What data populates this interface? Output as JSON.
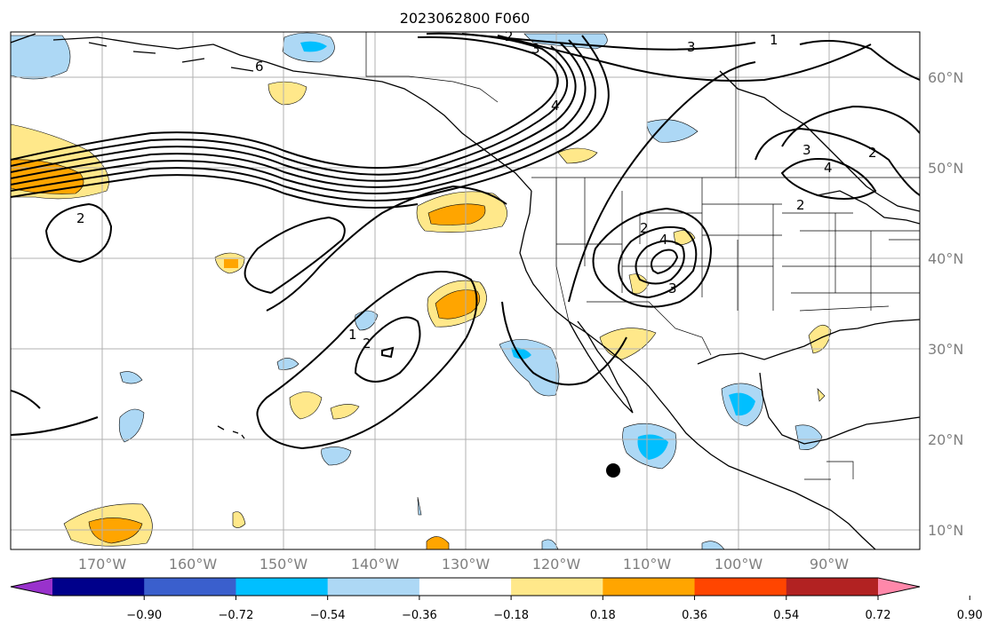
{
  "title": "2023062800 F060",
  "lon_labels": [
    "170°W",
    "160°W",
    "150°W",
    "140°W",
    "130°W",
    "120°W",
    "110°W",
    "100°W",
    "90°W"
  ],
  "lat_labels": [
    "60°N",
    "50°N",
    "40°N",
    "30°N",
    "20°N",
    "10°N"
  ],
  "colorbar": {
    "colors": [
      "#9932cc",
      "#00008b",
      "#3a5fcd",
      "#00bfff",
      "#add8f5",
      "#ffffff",
      "#ffe88a",
      "#ffa500",
      "#ff4500",
      "#b22222",
      "#ff88aa"
    ],
    "tick_labels": [
      "−0.90",
      "−0.72",
      "−0.54",
      "−0.36",
      "−0.18",
      "0.18",
      "0.36",
      "0.54",
      "0.72",
      "0.90"
    ]
  },
  "contour_labels": [
    "6",
    "2",
    "3",
    "4",
    "3",
    "2",
    "3",
    "4",
    "2",
    "2",
    "1",
    "2",
    "4",
    "3",
    "2",
    "1"
  ],
  "colors": {
    "land": "#000000",
    "grid": "#b0b0b0",
    "contour": "#000000",
    "marker": "#000000"
  }
}
